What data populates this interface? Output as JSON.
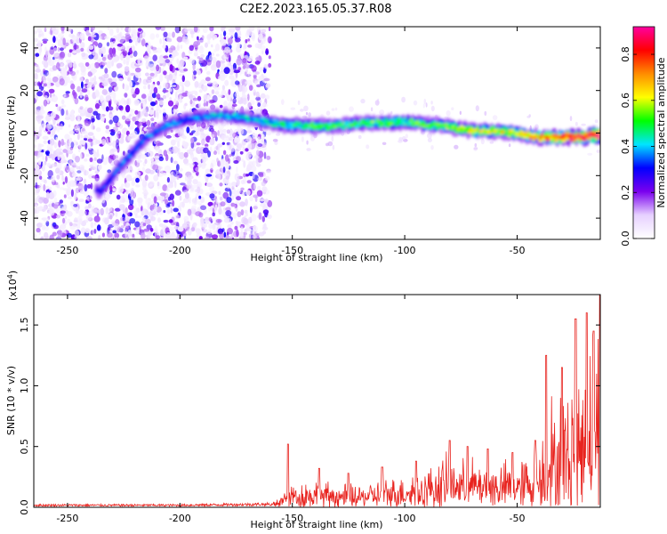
{
  "title": "C2E2.2023.165.05.37.R08",
  "chart_data": [
    {
      "type": "heatmap",
      "xlabel": "Height of straight line (km)",
      "ylabel": "Frequency (Hz)",
      "xlim": [
        -265,
        -13
      ],
      "ylim": [
        -50,
        50
      ],
      "xticks": [
        -250,
        -200,
        -150,
        -100,
        -50
      ],
      "yticks": [
        -40,
        -20,
        0,
        20,
        40
      ],
      "colorbar": {
        "label": "Normalized spectral amplitude",
        "range": [
          0.0,
          0.92
        ],
        "ticks": [
          0.0,
          0.2,
          0.4,
          0.6,
          0.8
        ],
        "colors": [
          "#ffffff",
          "#e6d0ff",
          "#7a00ee",
          "#0000ff",
          "#00e5ff",
          "#00ff00",
          "#ffff00",
          "#ff8c00",
          "#ff0000",
          "#ff00a0"
        ]
      },
      "ridge": {
        "x": [
          -235,
          -225,
          -215,
          -205,
          -195,
          -185,
          -175,
          -165,
          -155,
          -140,
          -125,
          -110,
          -100,
          -90,
          -80,
          -70,
          -60,
          -50,
          -40,
          -30,
          -20,
          -15
        ],
        "y": [
          -27,
          -14,
          -2,
          4,
          7,
          8,
          8,
          6,
          4,
          3,
          4,
          5,
          5,
          4,
          3,
          1,
          1,
          0,
          -2,
          -2,
          -2,
          -1
        ],
        "amplitude": [
          0.3,
          0.35,
          0.35,
          0.35,
          0.35,
          0.4,
          0.4,
          0.42,
          0.45,
          0.5,
          0.5,
          0.52,
          0.5,
          0.5,
          0.55,
          0.6,
          0.6,
          0.62,
          0.7,
          0.75,
          0.85,
          0.9
        ]
      }
    },
    {
      "type": "line",
      "xlabel": "Height of straight line (km)",
      "ylabel": "SNR (10 * v/v)",
      "y_multiplier": "(x10",
      "y_exponent": "4",
      "y_multiplier_close": ")",
      "xlim": [
        -265,
        -13
      ],
      "ylim": [
        0,
        1.75
      ],
      "xticks": [
        -250,
        -200,
        -150,
        -100,
        -50
      ],
      "yticks": [
        "0.0",
        "0.5",
        "1.0",
        "1.5"
      ],
      "color": "#e8231e",
      "envelope": {
        "x": [
          -265,
          -250,
          -200,
          -160,
          -155,
          -150,
          -140,
          -130,
          -120,
          -110,
          -100,
          -90,
          -85,
          -80,
          -75,
          -70,
          -65,
          -60,
          -55,
          -50,
          -45,
          -40,
          -38,
          -35,
          -33,
          -30,
          -27,
          -25,
          -20,
          -18,
          -15,
          -13
        ],
        "y": [
          0.02,
          0.02,
          0.02,
          0.03,
          0.1,
          0.18,
          0.2,
          0.18,
          0.18,
          0.2,
          0.25,
          0.3,
          0.35,
          0.4,
          0.35,
          0.38,
          0.35,
          0.33,
          0.35,
          0.36,
          0.4,
          0.45,
          0.7,
          0.9,
          0.6,
          1.0,
          0.8,
          1.2,
          1.1,
          1.4,
          1.2,
          1.5
        ]
      },
      "spikes": {
        "x": [
          -152,
          -138,
          -125,
          -110,
          -95,
          -80,
          -72,
          -63,
          -52,
          -42,
          -37,
          -30,
          -24,
          -19,
          -16,
          -13
        ],
        "y": [
          0.52,
          0.32,
          0.28,
          0.33,
          0.38,
          0.55,
          0.5,
          0.48,
          0.45,
          0.55,
          1.25,
          1.15,
          1.55,
          1.6,
          1.45,
          1.75
        ]
      }
    }
  ]
}
